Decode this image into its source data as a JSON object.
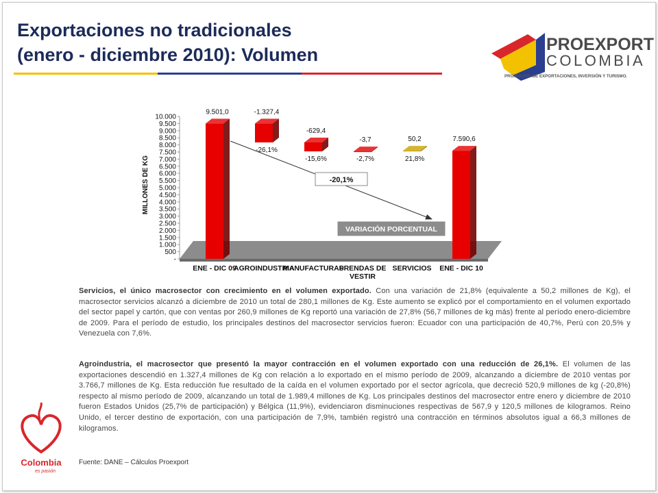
{
  "header": {
    "title_lines": [
      "Exportaciones no tradicionales",
      "(enero - diciembre 2010): Volumen"
    ]
  },
  "logo": {
    "name_top": "PROEXPORT",
    "name_bottom": "COLOMBIA",
    "tagline": "PROMOCIÓN DE EXPORTACIONES, INVERSIÓN Y TURISMO."
  },
  "chart_data": {
    "type": "waterfall",
    "ylabel": "MILLONES DE KG",
    "categories": [
      "ENE - DIC 09",
      "AGROINDUSTRIA",
      "MANUFACTURAS",
      "PRENDAS DE VESTIR",
      "SERVICIOS",
      "ENE - DIC 10"
    ],
    "values": [
      9501.0,
      -1327.4,
      -629.4,
      -3.7,
      50.2,
      7590.6
    ],
    "value_labels": [
      "9.501,0",
      "-1.327,4",
      "-629,4",
      "-3,7",
      "50,2",
      "7.590,6"
    ],
    "change_labels": [
      null,
      "-26,1%",
      "-15,6%",
      "-2,7%",
      "21,8%",
      null
    ],
    "is_total": [
      true,
      false,
      false,
      false,
      false,
      true
    ],
    "colors": [
      "#e60000",
      "#e60000",
      "#e60000",
      "#e60000",
      "#c9a100",
      "#e60000"
    ],
    "ylim": [
      0,
      10000
    ],
    "yticks": [
      {
        "value": 0,
        "label": "-"
      },
      500,
      {
        "value": 1000,
        "label": "1.000"
      },
      {
        "value": 1500,
        "label": "1.500"
      },
      {
        "value": 2000,
        "label": "2.000"
      },
      {
        "value": 2500,
        "label": "2.500"
      },
      {
        "value": 3000,
        "label": "3.000"
      },
      {
        "value": 3500,
        "label": "3.500"
      },
      {
        "value": 4000,
        "label": "4.000"
      },
      {
        "value": 4500,
        "label": "4.500"
      },
      {
        "value": 5000,
        "label": "5.000"
      },
      {
        "value": 5500,
        "label": "5.500"
      },
      {
        "value": 6000,
        "label": "6.000"
      },
      {
        "value": 6500,
        "label": "6.500"
      },
      {
        "value": 7000,
        "label": "7.000"
      },
      {
        "value": 7500,
        "label": "7.500"
      },
      {
        "value": 8000,
        "label": "8.000"
      },
      {
        "value": 8500,
        "label": "8.500"
      },
      {
        "value": 9000,
        "label": "9.000"
      },
      {
        "value": 9500,
        "label": "9.500"
      },
      {
        "value": 10000,
        "label": "10.000"
      }
    ],
    "total_change_label": "-20,1%",
    "legend_box": "VARIACIÓN PORCENTUAL"
  },
  "paragraphs": [
    {
      "lead": "Servicios, el único macrosector con crecimiento en el volumen exportado.",
      "body": " Con una variación de 21,8% (equivalente a 50,2 millones de Kg), el macrosector servicios alcanzó a diciembre de 2010 un total de 280,1 millones de Kg. Este aumento se explicó por el comportamiento en el volumen exportado del sector papel y cartón, que con ventas por 260,9 millones de Kg reportó una variación de 27,8% (56,7 millones de kg más) frente al período enero-diciembre de 2009. Para el período de estudio, los principales destinos del macrosector servicios fueron: Ecuador con una participación  de 40,7%, Perú con 20,5% y Venezuela con 7,6%."
    },
    {
      "lead": "Agroindustria, el macrosector que presentó la mayor contracción en el volumen exportado con una reducción de 26,1%.",
      "body": " El volumen de las exportaciones descendió en 1.327,4 millones de Kg con relación a lo exportado en el mismo período de 2009, alcanzando a diciembre de 2010 ventas por 3.766,7 millones de Kg. Esta reducción fue resultado de la caída en el volumen exportado por el sector agrícola, que decreció 520,9 millones de kg (-20,8%) respecto al mismo período de 2009, alcanzando un total de 1.989,4 millones de Kg. Los principales destinos del macrosector entre enero y diciembre de 2010 fueron Estados Unidos (25,7% de participación) y Bélgica (11,9%), evidenciaron disminuciones respectivas de 567,9 y 120,5 millones de kilogramos. Reino Unido, el tercer destino de exportación, con una participación de 7,9%, también registró una contracción en términos absolutos igual a 66,3 millones de kilogramos."
    }
  ],
  "source": "Fuente: DANE – Cálculos Proexport",
  "brand": {
    "name": "Colombia",
    "slogan": "es pasión"
  }
}
